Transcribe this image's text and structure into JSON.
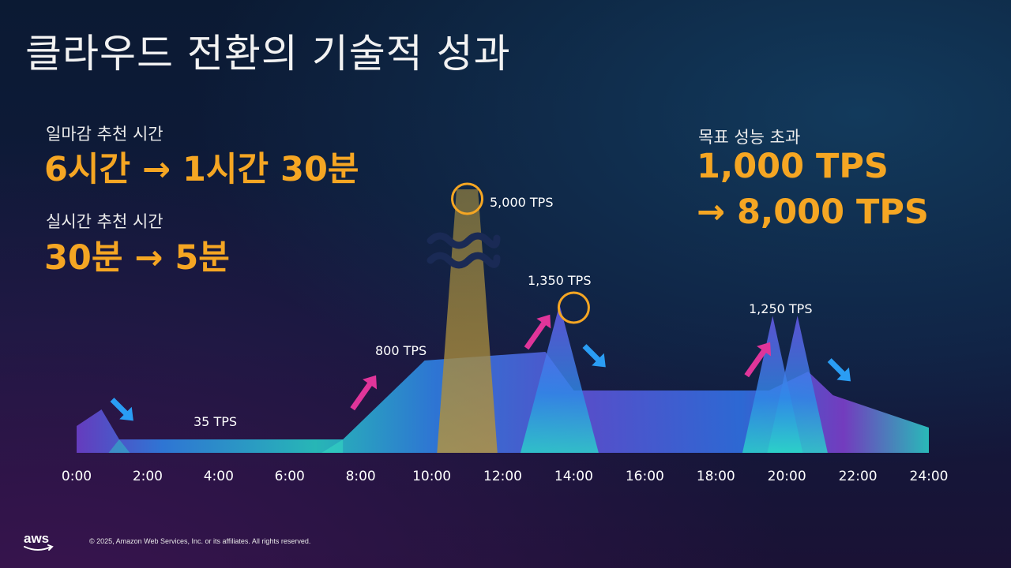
{
  "slide": {
    "title": "클라우드 전환의 기술적 성과",
    "kpi_left": [
      {
        "label": "일마감 추천 시간",
        "value": "6시간 → 1시간 30분"
      },
      {
        "label": "실시간 추천 시간",
        "value": "30분 → 5분"
      }
    ],
    "kpi_right": {
      "label": "목표 성능 초과",
      "value_line1": "1,000 TPS",
      "value_line2": "→ 8,000 TPS"
    },
    "copyright": "© 2025, Amazon Web Services, Inc. or its affiliates. All rights reserved.",
    "logo_text": "aws"
  },
  "chart_data": {
    "type": "area",
    "x_ticks": [
      "0:00",
      "2:00",
      "4:00",
      "6:00",
      "8:00",
      "10:00",
      "12:00",
      "14:00",
      "16:00",
      "18:00",
      "20:00",
      "22:00",
      "24:00"
    ],
    "xlim": [
      0,
      24
    ],
    "y_scale": "broken (not to scale)",
    "annotations": [
      {
        "label": "35 TPS",
        "time": 4.0
      },
      {
        "label": "800 TPS",
        "time": 9.2
      },
      {
        "label": "5,000 TPS",
        "time": 11.0
      },
      {
        "label": "1,350 TPS",
        "time": 13.6
      },
      {
        "label": "1,250 TPS",
        "time": 20.0
      }
    ],
    "peaks_tps": [
      {
        "time": 11.0,
        "tps": 5000
      },
      {
        "time": 13.6,
        "tps": 1350
      },
      {
        "time": 19.6,
        "tps": 1250
      },
      {
        "time": 20.3,
        "tps": 1250
      }
    ],
    "base_level_tps": [
      {
        "from": 1.2,
        "to": 7.5,
        "tps": 35
      },
      {
        "from": 9.8,
        "to": 13.2,
        "tps": 800
      },
      {
        "from": 14.0,
        "to": 19.5,
        "tps": 800
      }
    ],
    "trend_arrows": [
      {
        "time": 1.3,
        "direction": "down",
        "color": "#2a9df4"
      },
      {
        "time": 8.1,
        "direction": "up",
        "color": "#e0359a"
      },
      {
        "time": 13.0,
        "direction": "up",
        "color": "#e0359a"
      },
      {
        "time": 14.6,
        "direction": "down",
        "color": "#2a9df4"
      },
      {
        "time": 19.2,
        "direction": "up",
        "color": "#e0359a"
      },
      {
        "time": 21.5,
        "direction": "down",
        "color": "#2a9df4"
      }
    ],
    "colors": {
      "accent": "#f5a623",
      "area_blue": "#2f7de0",
      "area_teal": "#2bc7c3",
      "area_purple": "#7b3fc9",
      "peak_gold": "#b8953a"
    }
  }
}
